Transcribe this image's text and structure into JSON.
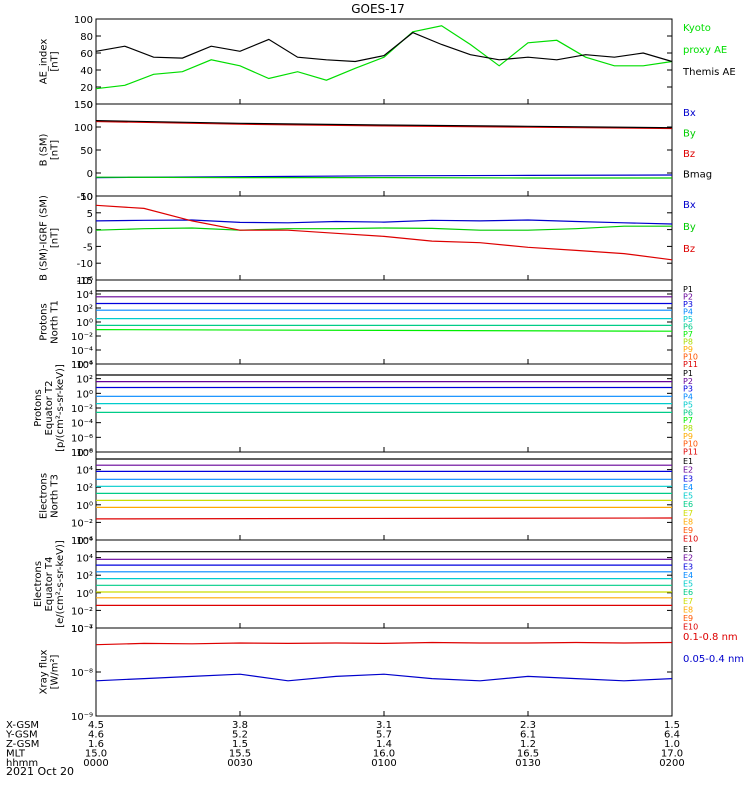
{
  "title": "GOES-17",
  "date": "2021 Oct 20",
  "time_axis": {
    "row_labels": [
      "X-GSM",
      "Y-GSM",
      "Z-GSM",
      "MLT",
      "hhmm"
    ],
    "columns": [
      [
        "4.5",
        "4.6",
        "1.6",
        "15.0",
        "0000"
      ],
      [
        "3.8",
        "5.2",
        "1.5",
        "15.5",
        "0030"
      ],
      [
        "3.1",
        "5.7",
        "1.4",
        "16.0",
        "0100"
      ],
      [
        "2.3",
        "6.1",
        "1.2",
        "16.5",
        "0130"
      ],
      [
        "1.5",
        "6.4",
        "1.0",
        "17.0",
        "0200"
      ]
    ]
  },
  "chart_data": [
    {
      "type": "line",
      "id": "ae",
      "ylabel": [
        "AE_index",
        "[nT]"
      ],
      "yticks": [
        "0",
        "20",
        "40",
        "60",
        "80",
        "100"
      ],
      "ylim": [
        0,
        100
      ],
      "legend": [
        {
          "label": "Kyoto",
          "color": "#00dd00"
        },
        {
          "label": "proxy AE",
          "color": "#00dd00"
        },
        {
          "label": "Themis AE",
          "color": "#000000"
        }
      ],
      "x": [
        0,
        6,
        12,
        18,
        24,
        30,
        36,
        42,
        48,
        54,
        60,
        66,
        72,
        78,
        84,
        90,
        96,
        102,
        108,
        114,
        120
      ],
      "series": [
        {
          "name": "Kyoto proxy AE",
          "color": "#00dd00",
          "values": [
            18,
            22,
            35,
            38,
            52,
            45,
            30,
            38,
            28,
            42,
            55,
            85,
            92,
            70,
            45,
            72,
            75,
            55,
            45,
            45,
            50
          ]
        },
        {
          "name": "Themis AE",
          "color": "#000000",
          "values": [
            62,
            68,
            55,
            54,
            68,
            62,
            76,
            55,
            52,
            50,
            57,
            84,
            70,
            58,
            52,
            55,
            52,
            58,
            55,
            60,
            50
          ]
        }
      ]
    },
    {
      "type": "line",
      "id": "bsm",
      "ylabel": [
        "B (SM)",
        "[nT]"
      ],
      "yticks": [
        "-50",
        "0",
        "50",
        "100",
        "150"
      ],
      "ylim": [
        -60,
        150
      ],
      "legend": [
        {
          "label": "Bx",
          "color": "#0000cc"
        },
        {
          "label": "By",
          "color": "#00cc00"
        },
        {
          "label": "Bz",
          "color": "#dd0000"
        },
        {
          "label": "Bmag",
          "color": "#000000"
        }
      ],
      "x": [
        0,
        30,
        60,
        90,
        120
      ],
      "series": [
        {
          "name": "Bx",
          "color": "#0000cc",
          "values": [
            -18,
            -16,
            -14,
            -13,
            -12
          ]
        },
        {
          "name": "By",
          "color": "#00cc00",
          "values": [
            -17,
            -18,
            -18,
            -19,
            -19
          ]
        },
        {
          "name": "Bz",
          "color": "#dd0000",
          "values": [
            110,
            104,
            100,
            97,
            94
          ]
        },
        {
          "name": "Bmag",
          "color": "#000000",
          "values": [
            112,
            106,
            102,
            99,
            96
          ]
        }
      ]
    },
    {
      "type": "line",
      "id": "bigrf",
      "ylabel": [
        "B (SM)-IGRF (SM)",
        "[nT]"
      ],
      "yticks": [
        "-15",
        "-10",
        "-5",
        "0",
        "5",
        "10"
      ],
      "ylim": [
        -17,
        10
      ],
      "legend": [
        {
          "label": "Bx",
          "color": "#0000cc"
        },
        {
          "label": "By",
          "color": "#00cc00"
        },
        {
          "label": "Bz",
          "color": "#dd0000"
        }
      ],
      "x": [
        0,
        10,
        20,
        30,
        40,
        50,
        60,
        70,
        80,
        90,
        100,
        110,
        120
      ],
      "series": [
        {
          "name": "Bx",
          "color": "#0000cc",
          "values": [
            2,
            2.2,
            2.3,
            1.5,
            1.4,
            1.8,
            1.6,
            2.2,
            2,
            2.3,
            1.8,
            1.4,
            1
          ]
        },
        {
          "name": "By",
          "color": "#00cc00",
          "values": [
            -1,
            -0.5,
            -0.3,
            -1,
            -0.5,
            -0.5,
            -0.3,
            -0.4,
            -1,
            -1,
            -0.5,
            0.3,
            0.3
          ]
        },
        {
          "name": "Bz",
          "color": "#dd0000",
          "values": [
            7,
            6,
            2,
            -1,
            -1,
            -2,
            -3,
            -4.5,
            -5,
            -6.5,
            -7.5,
            -8.5,
            -10.5
          ]
        }
      ]
    },
    {
      "type": "line",
      "id": "pn",
      "ylabel": [
        "Protons",
        "North T1"
      ],
      "yticks": [
        "10⁶",
        "10⁴",
        "10²",
        "10⁰",
        "10⁻²",
        "10⁻⁴",
        "10⁻⁶"
      ],
      "ylim": [
        -6,
        4
      ],
      "legend": [
        {
          "label": "P1",
          "color": "#000000"
        },
        {
          "label": "P2",
          "color": "#660099"
        },
        {
          "label": "P3",
          "color": "#0000dd"
        },
        {
          "label": "P4",
          "color": "#0088ff"
        },
        {
          "label": "P5",
          "color": "#00cccc"
        },
        {
          "label": "P6",
          "color": "#00cc88"
        },
        {
          "label": "P7",
          "color": "#00ee00"
        },
        {
          "label": "P8",
          "color": "#aadd00"
        },
        {
          "label": "P9",
          "color": "#ffaa00"
        },
        {
          "label": "P10",
          "color": "#ff5500"
        },
        {
          "label": "P11",
          "color": "#dd0000"
        }
      ],
      "x": [
        0,
        120
      ],
      "series": [
        {
          "name": "P1",
          "color": "#000000",
          "values": [
            2.7,
            2.7
          ]
        },
        {
          "name": "P2",
          "color": "#660099",
          "values": [
            2,
            2
          ]
        },
        {
          "name": "P3",
          "color": "#0000dd",
          "values": [
            1.2,
            1.2
          ]
        },
        {
          "name": "P4",
          "color": "#0088ff",
          "values": [
            0.4,
            0.4
          ]
        },
        {
          "name": "P5",
          "color": "#00cccc",
          "values": [
            -0.6,
            -0.6
          ]
        },
        {
          "name": "P6",
          "color": "#00cc88",
          "values": [
            -1.4,
            -1.4
          ]
        },
        {
          "name": "P7",
          "color": "#00ee00",
          "values": [
            -1.9,
            -2.1
          ]
        }
      ]
    },
    {
      "type": "line",
      "id": "pe",
      "ylabel": [
        "Protons",
        "Equator T2",
        "[p/(cm²-s-sr-keV)]"
      ],
      "yticks": [
        "10⁴",
        "10²",
        "10⁰",
        "10⁻²",
        "10⁻⁴",
        "10⁻⁶",
        "10⁻⁸"
      ],
      "ylim": [
        -8,
        4
      ],
      "legend": [
        {
          "label": "P1",
          "color": "#000000"
        },
        {
          "label": "P2",
          "color": "#660099"
        },
        {
          "label": "P3",
          "color": "#0000dd"
        },
        {
          "label": "P4",
          "color": "#0088ff"
        },
        {
          "label": "P5",
          "color": "#00cccc"
        },
        {
          "label": "P6",
          "color": "#00cc88"
        },
        {
          "label": "P7",
          "color": "#00ee00"
        },
        {
          "label": "P8",
          "color": "#aadd00"
        },
        {
          "label": "P9",
          "color": "#ffaa00"
        },
        {
          "label": "P10",
          "color": "#ff5500"
        },
        {
          "label": "P11",
          "color": "#dd0000"
        }
      ],
      "x": [
        0,
        120
      ],
      "series": [
        {
          "name": "P1",
          "color": "#000000",
          "values": [
            2.5,
            2.5
          ]
        },
        {
          "name": "P2",
          "color": "#660099",
          "values": [
            1.6,
            1.6
          ]
        },
        {
          "name": "P3",
          "color": "#0000dd",
          "values": [
            0.8,
            0.8
          ]
        },
        {
          "name": "P4",
          "color": "#0088ff",
          "values": [
            -0.4,
            -0.4
          ]
        },
        {
          "name": "P5",
          "color": "#00cccc",
          "values": [
            -1.4,
            -1.4
          ]
        },
        {
          "name": "P6",
          "color": "#00cc88",
          "values": [
            -2.6,
            -2.6
          ]
        }
      ]
    },
    {
      "type": "line",
      "id": "en",
      "ylabel": [
        "Electrons",
        "North T3"
      ],
      "yticks": [
        "10⁶",
        "10⁴",
        "10²",
        "10⁰",
        "10⁻²",
        "10⁻⁴"
      ],
      "ylim": [
        -4,
        6
      ],
      "legend": [
        {
          "label": "E1",
          "color": "#000000"
        },
        {
          "label": "E2",
          "color": "#660099"
        },
        {
          "label": "E3",
          "color": "#0000dd"
        },
        {
          "label": "E4",
          "color": "#0088ff"
        },
        {
          "label": "E5",
          "color": "#00cccc"
        },
        {
          "label": "E6",
          "color": "#00cc88"
        },
        {
          "label": "E7",
          "color": "#ccdd00"
        },
        {
          "label": "E8",
          "color": "#ffaa00"
        },
        {
          "label": "E9",
          "color": "#ff5500"
        },
        {
          "label": "E10",
          "color": "#dd0000"
        }
      ],
      "x": [
        0,
        120
      ],
      "series": [
        {
          "name": "E1",
          "color": "#000000",
          "values": [
            5.2,
            5.2
          ]
        },
        {
          "name": "E2",
          "color": "#660099",
          "values": [
            4.5,
            4.5
          ]
        },
        {
          "name": "E3",
          "color": "#0000dd",
          "values": [
            3.8,
            3.8
          ]
        },
        {
          "name": "E4",
          "color": "#0088ff",
          "values": [
            2.9,
            2.9
          ]
        },
        {
          "name": "E5",
          "color": "#00cccc",
          "values": [
            2.1,
            2.1
          ]
        },
        {
          "name": "E6",
          "color": "#00cc88",
          "values": [
            1.3,
            1.3
          ]
        },
        {
          "name": "E7",
          "color": "#ccdd00",
          "values": [
            0.5,
            0.5
          ]
        },
        {
          "name": "E8",
          "color": "#ffaa00",
          "values": [
            -0.3,
            -0.3
          ]
        },
        {
          "name": "E9",
          "color": "#dd0000",
          "values": [
            -1.6,
            -1.5
          ]
        }
      ]
    },
    {
      "type": "line",
      "id": "ee",
      "ylabel": [
        "Electrons",
        "Equator T4",
        "[e/(cm²-s-sr-keV)]"
      ],
      "yticks": [
        "10⁶",
        "10⁴",
        "10²",
        "10⁰",
        "10⁻²",
        "10⁻⁴"
      ],
      "ylim": [
        -4.5,
        6
      ],
      "legend": [
        {
          "label": "E1",
          "color": "#000000"
        },
        {
          "label": "E2",
          "color": "#660099"
        },
        {
          "label": "E3",
          "color": "#0000dd"
        },
        {
          "label": "E4",
          "color": "#0088ff"
        },
        {
          "label": "E5",
          "color": "#00cccc"
        },
        {
          "label": "E6",
          "color": "#00cc88"
        },
        {
          "label": "E7",
          "color": "#ccdd00"
        },
        {
          "label": "E8",
          "color": "#ffaa00"
        },
        {
          "label": "E9",
          "color": "#ff5500"
        },
        {
          "label": "E10",
          "color": "#dd0000"
        }
      ],
      "x": [
        0,
        120
      ],
      "series": [
        {
          "name": "E1",
          "color": "#000000",
          "values": [
            4.6,
            4.6
          ]
        },
        {
          "name": "E2",
          "color": "#660099",
          "values": [
            3.7,
            3.7
          ]
        },
        {
          "name": "E3",
          "color": "#0000dd",
          "values": [
            3.0,
            3.0
          ]
        },
        {
          "name": "E4",
          "color": "#0088ff",
          "values": [
            2.2,
            2.2
          ]
        },
        {
          "name": "E5",
          "color": "#00cccc",
          "values": [
            1.4,
            1.4
          ]
        },
        {
          "name": "E6",
          "color": "#00cc88",
          "values": [
            0.6,
            0.6
          ]
        },
        {
          "name": "E7",
          "color": "#ccdd00",
          "values": [
            -0.2,
            -0.2
          ]
        },
        {
          "name": "E8",
          "color": "#ffaa00",
          "values": [
            -0.9,
            -0.9
          ]
        },
        {
          "name": "E10",
          "color": "#dd0000",
          "values": [
            -1.8,
            -1.8
          ]
        }
      ]
    },
    {
      "type": "line",
      "id": "xray",
      "ylabel": [
        "Xray flux",
        "[W/m²]"
      ],
      "yticks": [
        "10⁻⁷",
        "10⁻⁸",
        "10⁻⁹"
      ],
      "ylim": [
        -9,
        -7
      ],
      "legend": [
        {
          "label": "0.1-0.8 nm",
          "color": "#dd0000"
        },
        {
          "label": "0.05-0.4 nm",
          "color": "#0000cc"
        }
      ],
      "x": [
        0,
        10,
        20,
        30,
        40,
        50,
        60,
        70,
        80,
        90,
        100,
        110,
        120
      ],
      "series": [
        {
          "name": "0.1-0.8 nm",
          "color": "#dd0000",
          "values": [
            -7.38,
            -7.35,
            -7.36,
            -7.34,
            -7.35,
            -7.34,
            -7.35,
            -7.33,
            -7.34,
            -7.34,
            -7.33,
            -7.34,
            -7.33
          ]
        },
        {
          "name": "0.05-0.4 nm",
          "color": "#0000cc",
          "values": [
            -8.2,
            -8.15,
            -8.1,
            -8.05,
            -8.2,
            -8.1,
            -8.05,
            -8.15,
            -8.2,
            -8.1,
            -8.15,
            -8.2,
            -8.15
          ]
        }
      ]
    }
  ]
}
